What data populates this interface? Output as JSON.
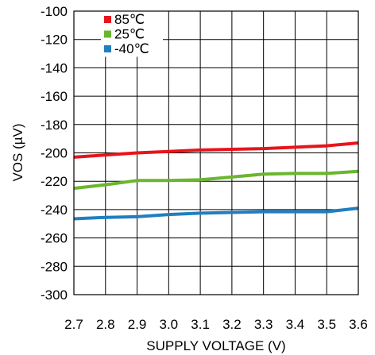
{
  "chart_data": {
    "type": "line",
    "title": "",
    "xlabel": "SUPPLY VOLTAGE (V)",
    "ylabel": "VOS (µV)",
    "x": [
      2.7,
      2.8,
      2.9,
      3.0,
      3.1,
      3.2,
      3.3,
      3.4,
      3.5,
      3.6
    ],
    "x_tick_labels": [
      "2.7",
      "2.8",
      "2.9",
      "3.0",
      "3.1",
      "3.2",
      "3.3",
      "3.4",
      "3.5",
      "3.6"
    ],
    "y_tick_labels": [
      "-100",
      "-120",
      "-140",
      "-160",
      "-180",
      "-200",
      "-220",
      "-240",
      "-260",
      "-280",
      "-300"
    ],
    "y_ticks": [
      -100,
      -120,
      -140,
      -160,
      -180,
      -200,
      -220,
      -240,
      -260,
      -280,
      -300
    ],
    "xlim": [
      2.7,
      3.6
    ],
    "ylim": [
      -300,
      -100
    ],
    "grid": true,
    "legend_position": "top-left",
    "series": [
      {
        "name": "85℃",
        "color": "#e8141b",
        "values": [
          -203,
          -201.5,
          -200,
          -199,
          -198,
          -197.5,
          -197,
          -196,
          -195,
          -193
        ]
      },
      {
        "name": "25℃",
        "color": "#6ab62f",
        "values": [
          -225,
          -222.5,
          -219.5,
          -219.5,
          -219,
          -217,
          -215,
          -214.5,
          -214.5,
          -213
        ]
      },
      {
        "name": "-40℃",
        "color": "#1f7fc0",
        "values": [
          -246.5,
          -245.5,
          -245,
          -243.5,
          -242.5,
          -242,
          -241.5,
          -241.5,
          -241.5,
          -239
        ]
      }
    ]
  }
}
